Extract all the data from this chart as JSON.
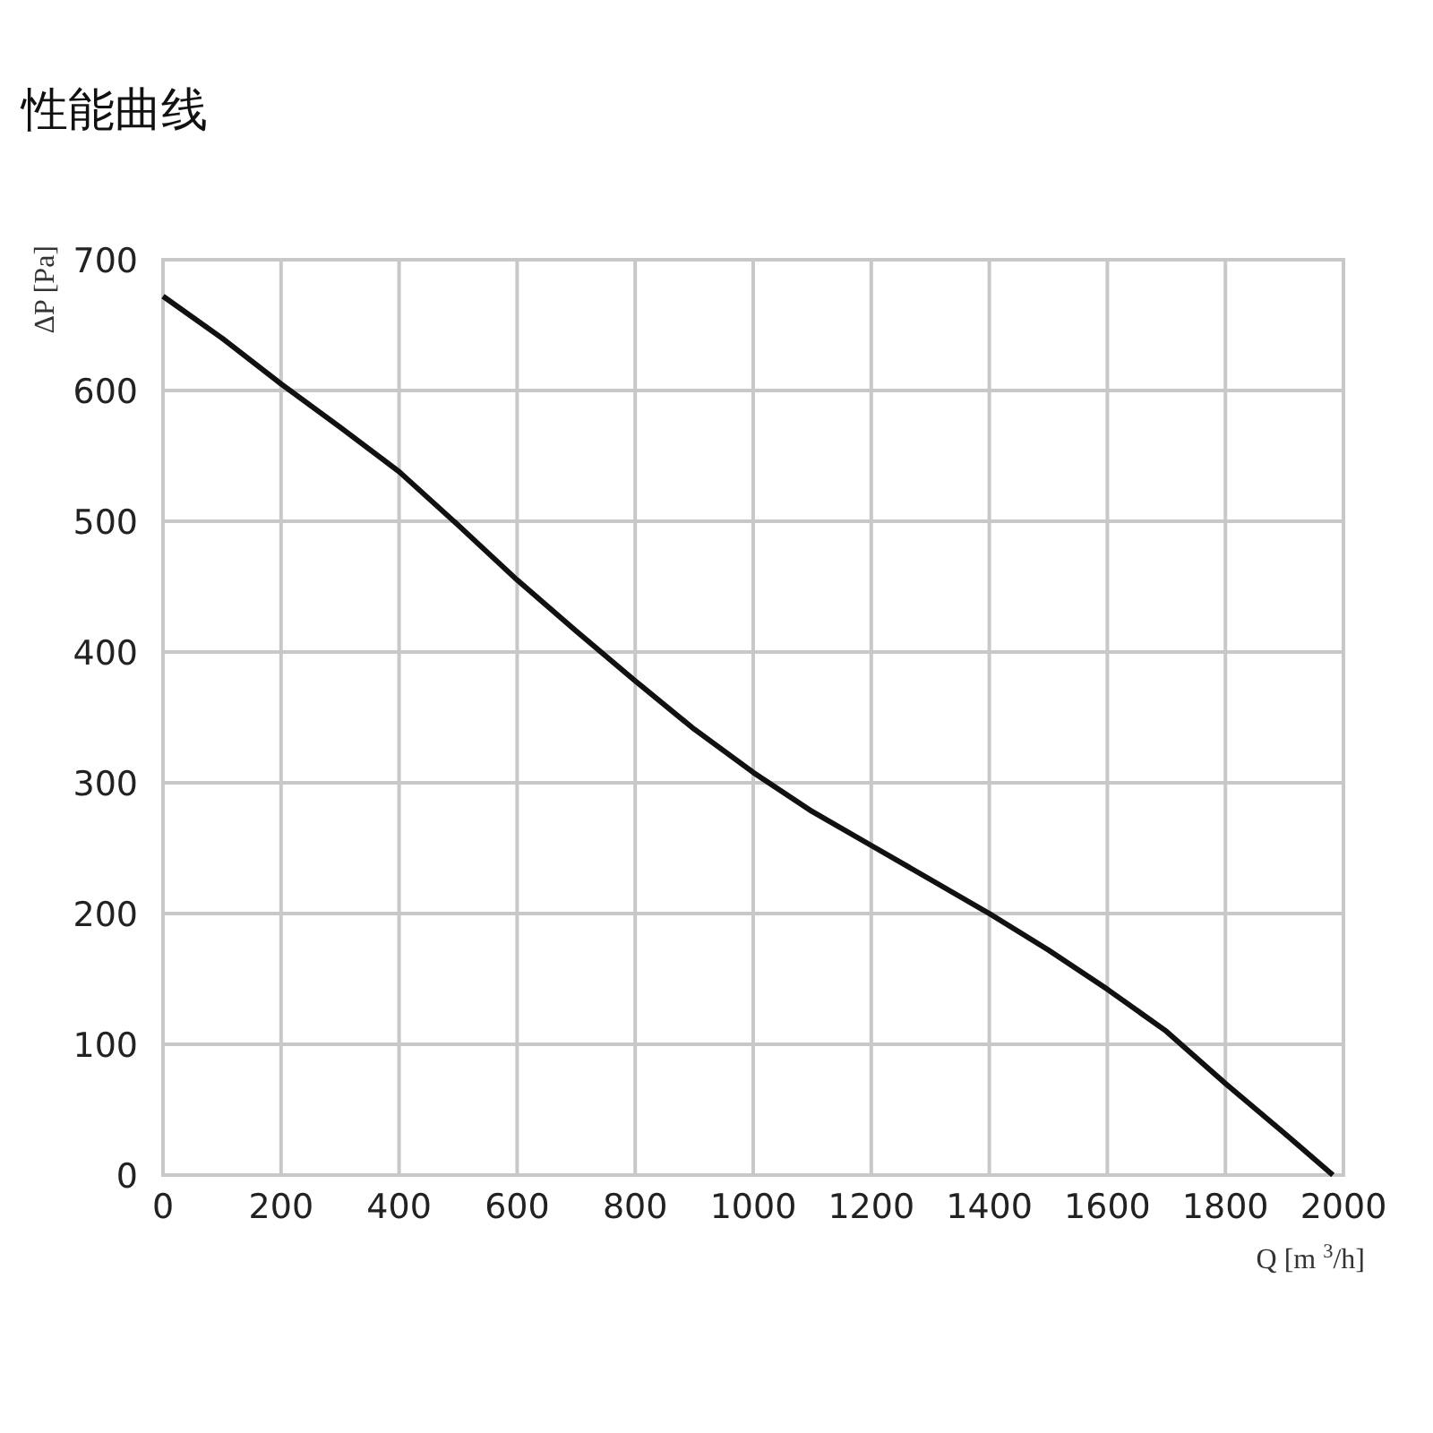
{
  "chart_data": {
    "type": "line",
    "title": "性能曲线",
    "xlabel": "Q [m $^{3}$/h]",
    "ylabel": "ΔP [Pa]",
    "x": [
      0,
      100,
      200,
      300,
      400,
      500,
      600,
      700,
      800,
      900,
      1000,
      1100,
      1200,
      1300,
      1400,
      1500,
      1600,
      1700,
      1800,
      1900,
      1982
    ],
    "series": [
      {
        "color": "#111111",
        "values": [
          672,
          640,
          605,
          572,
          538,
          497,
          455,
          416,
          378,
          341,
          308,
          278,
          252,
          226,
          200,
          172,
          142,
          110,
          70,
          32,
          0
        ]
      }
    ],
    "xlim": [
      0,
      2000
    ],
    "ylim": [
      0,
      700
    ],
    "xticks": [
      0,
      200,
      400,
      600,
      800,
      1000,
      1200,
      1400,
      1600,
      1800,
      2000
    ],
    "yticks": [
      0,
      100,
      200,
      300,
      400,
      500,
      600,
      700
    ],
    "grid": true,
    "marker": "none",
    "line_style": "solid"
  }
}
